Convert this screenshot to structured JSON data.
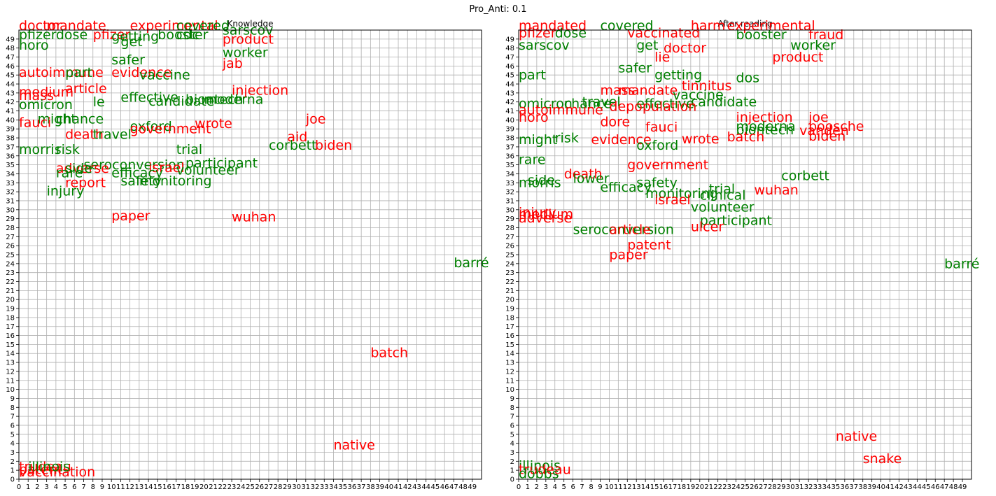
{
  "figure": {
    "suptitle": "Pro_Anti: 0.1"
  },
  "colors": {
    "pro": "#008000",
    "anti": "#ff0000",
    "grid": "#b0b0b0",
    "axis": "#000000"
  },
  "chart_data": [
    {
      "type": "scatter",
      "title": "Knowledge",
      "xlim": [
        0,
        50
      ],
      "ylim": [
        0,
        50
      ],
      "grid": true,
      "xticks": [
        "0",
        "1",
        "2",
        "3",
        "4",
        "5",
        "6",
        "7",
        "8",
        "9",
        "10",
        "11",
        "12",
        "13",
        "14",
        "15",
        "16",
        "17",
        "18",
        "19",
        "20",
        "21",
        "22",
        "23",
        "24",
        "25",
        "26",
        "27",
        "28",
        "29",
        "30",
        "31",
        "32",
        "33",
        "34",
        "35",
        "36",
        "37",
        "38",
        "39",
        "40",
        "41",
        "42",
        "43",
        "44",
        "45",
        "46",
        "47",
        "48",
        "49"
      ],
      "yticks": [
        "0",
        "1",
        "2",
        "3",
        "4",
        "5",
        "6",
        "7",
        "8",
        "9",
        "10",
        "11",
        "12",
        "13",
        "14",
        "15",
        "16",
        "17",
        "18",
        "19",
        "20",
        "21",
        "22",
        "23",
        "24",
        "25",
        "26",
        "27",
        "28",
        "29",
        "30",
        "31",
        "32",
        "33",
        "34",
        "35",
        "36",
        "37",
        "38",
        "39",
        "40",
        "41",
        "42",
        "43",
        "44",
        "45",
        "46",
        "47",
        "48",
        "49"
      ],
      "points": [
        {
          "label": "doctor",
          "x": 0,
          "y": 50,
          "group": "anti"
        },
        {
          "label": "mandate",
          "x": 3,
          "y": 50,
          "group": "anti"
        },
        {
          "label": "experimental",
          "x": 12,
          "y": 50,
          "group": "anti"
        },
        {
          "label": "covered",
          "x": 17,
          "y": 50,
          "group": "pro"
        },
        {
          "label": "sarscov",
          "x": 22,
          "y": 49.5,
          "group": "pro"
        },
        {
          "label": "pfizer",
          "x": 0,
          "y": 49,
          "group": "pro"
        },
        {
          "label": "dose",
          "x": 4,
          "y": 49,
          "group": "pro"
        },
        {
          "label": "pfizer",
          "x": 8,
          "y": 49,
          "group": "anti"
        },
        {
          "label": "getting",
          "x": 10,
          "y": 48.8,
          "group": "pro"
        },
        {
          "label": "booster",
          "x": 15,
          "y": 49,
          "group": "pro"
        },
        {
          "label": "cdc",
          "x": 17,
          "y": 49,
          "group": "pro"
        },
        {
          "label": "product",
          "x": 22,
          "y": 48.5,
          "group": "anti"
        },
        {
          "label": "get",
          "x": 11,
          "y": 48.2,
          "group": "pro"
        },
        {
          "label": "horo",
          "x": 0,
          "y": 47.8,
          "group": "pro"
        },
        {
          "label": "worker",
          "x": 22,
          "y": 47,
          "group": "pro"
        },
        {
          "label": "safer",
          "x": 10,
          "y": 46.2,
          "group": "pro"
        },
        {
          "label": "jab",
          "x": 22,
          "y": 45.8,
          "group": "anti"
        },
        {
          "label": "autoimmune",
          "x": 0,
          "y": 44.8,
          "group": "anti"
        },
        {
          "label": "part",
          "x": 5,
          "y": 44.8,
          "group": "pro"
        },
        {
          "label": "evidence",
          "x": 10,
          "y": 44.8,
          "group": "anti"
        },
        {
          "label": "vaccine",
          "x": 13,
          "y": 44.5,
          "group": "pro"
        },
        {
          "label": "article",
          "x": 5,
          "y": 43,
          "group": "anti"
        },
        {
          "label": "injection",
          "x": 23,
          "y": 42.8,
          "group": "anti"
        },
        {
          "label": "medium",
          "x": 0,
          "y": 42.6,
          "group": "anti"
        },
        {
          "label": "mass",
          "x": 0,
          "y": 42.2,
          "group": "anti"
        },
        {
          "label": "effective",
          "x": 11,
          "y": 42,
          "group": "pro"
        },
        {
          "label": "le",
          "x": 8,
          "y": 41.5,
          "group": "pro"
        },
        {
          "label": "candidate",
          "x": 14,
          "y": 41.6,
          "group": "pro"
        },
        {
          "label": "biontech",
          "x": 18,
          "y": 41.8,
          "group": "pro"
        },
        {
          "label": "moderna",
          "x": 20,
          "y": 41.8,
          "group": "pro"
        },
        {
          "label": "omicron",
          "x": 0,
          "y": 41.2,
          "group": "pro"
        },
        {
          "label": "might",
          "x": 2,
          "y": 39.6,
          "group": "pro"
        },
        {
          "label": "chance",
          "x": 4,
          "y": 39.6,
          "group": "pro"
        },
        {
          "label": "joe",
          "x": 31,
          "y": 39.6,
          "group": "anti"
        },
        {
          "label": "fauci",
          "x": 0,
          "y": 39.2,
          "group": "anti"
        },
        {
          "label": "wrote",
          "x": 19,
          "y": 39.1,
          "group": "anti"
        },
        {
          "label": "oxford",
          "x": 12,
          "y": 38.8,
          "group": "pro"
        },
        {
          "label": "government",
          "x": 12,
          "y": 38.5,
          "group": "anti"
        },
        {
          "label": "death",
          "x": 5,
          "y": 37.9,
          "group": "anti"
        },
        {
          "label": "travel",
          "x": 8,
          "y": 37.9,
          "group": "pro"
        },
        {
          "label": "aid",
          "x": 29,
          "y": 37.6,
          "group": "anti"
        },
        {
          "label": "corbett",
          "x": 27,
          "y": 36.7,
          "group": "pro"
        },
        {
          "label": "biden",
          "x": 32,
          "y": 36.7,
          "group": "anti"
        },
        {
          "label": "morris",
          "x": 0,
          "y": 36.2,
          "group": "pro"
        },
        {
          "label": "risk",
          "x": 4,
          "y": 36.2,
          "group": "pro"
        },
        {
          "label": "trial",
          "x": 17,
          "y": 36.2,
          "group": "pro"
        },
        {
          "label": "seroconversion",
          "x": 7,
          "y": 34.5,
          "group": "pro"
        },
        {
          "label": "participant",
          "x": 18,
          "y": 34.7,
          "group": "pro"
        },
        {
          "label": "israel",
          "x": 14,
          "y": 34.2,
          "group": "anti"
        },
        {
          "label": "adverse",
          "x": 4,
          "y": 34.1,
          "group": "anti"
        },
        {
          "label": "side",
          "x": 5,
          "y": 34.1,
          "group": "pro"
        },
        {
          "label": "efficacy",
          "x": 10,
          "y": 33.6,
          "group": "pro"
        },
        {
          "label": "volunteer",
          "x": 17,
          "y": 33.9,
          "group": "pro"
        },
        {
          "label": "rare",
          "x": 4,
          "y": 33.6,
          "group": "pro"
        },
        {
          "label": "safety",
          "x": 11,
          "y": 32.7,
          "group": "pro"
        },
        {
          "label": "monitoring",
          "x": 13,
          "y": 32.7,
          "group": "pro"
        },
        {
          "label": "report",
          "x": 5,
          "y": 32.5,
          "group": "anti"
        },
        {
          "label": "injury",
          "x": 3,
          "y": 31.6,
          "group": "pro"
        },
        {
          "label": "paper",
          "x": 10,
          "y": 28.8,
          "group": "anti"
        },
        {
          "label": "wuhan",
          "x": 23,
          "y": 28.7,
          "group": "anti"
        },
        {
          "label": "barré",
          "x": 47,
          "y": 23.6,
          "group": "pro"
        },
        {
          "label": "batch",
          "x": 38,
          "y": 13.6,
          "group": "anti"
        },
        {
          "label": "native",
          "x": 34,
          "y": 3.3,
          "group": "anti"
        },
        {
          "label": "vaccination",
          "x": 0,
          "y": 0.3,
          "group": "anti"
        },
        {
          "label": "trudeau",
          "x": 0,
          "y": 0.9,
          "group": "anti"
        },
        {
          "label": "patent",
          "x": 0,
          "y": 0.6,
          "group": "anti"
        },
        {
          "label": "illinois",
          "x": 1,
          "y": 0.9,
          "group": "green"
        }
      ]
    },
    {
      "type": "scatter",
      "title": "After reading",
      "xlim": [
        0,
        50
      ],
      "ylim": [
        0,
        50
      ],
      "grid": true,
      "xticks": [
        "0",
        "1",
        "2",
        "3",
        "4",
        "5",
        "6",
        "7",
        "8",
        "9",
        "10",
        "11",
        "12",
        "13",
        "14",
        "15",
        "16",
        "17",
        "18",
        "19",
        "20",
        "21",
        "22",
        "23",
        "24",
        "25",
        "26",
        "27",
        "28",
        "29",
        "30",
        "31",
        "32",
        "33",
        "34",
        "35",
        "36",
        "37",
        "38",
        "39",
        "40",
        "41",
        "42",
        "43",
        "44",
        "45",
        "46",
        "47",
        "48",
        "49"
      ],
      "yticks": [
        "0",
        "1",
        "2",
        "3",
        "4",
        "5",
        "6",
        "7",
        "8",
        "9",
        "10",
        "11",
        "12",
        "13",
        "14",
        "15",
        "16",
        "17",
        "18",
        "19",
        "20",
        "21",
        "22",
        "23",
        "24",
        "25",
        "26",
        "27",
        "28",
        "29",
        "30",
        "31",
        "32",
        "33",
        "34",
        "35",
        "36",
        "37",
        "38",
        "39",
        "40",
        "41",
        "42",
        "43",
        "44",
        "45",
        "46",
        "47",
        "48",
        "49"
      ],
      "points": [
        {
          "label": "mandated",
          "x": 0,
          "y": 50,
          "group": "anti"
        },
        {
          "label": "covered",
          "x": 9,
          "y": 50,
          "group": "pro"
        },
        {
          "label": "harm",
          "x": 19,
          "y": 50,
          "group": "anti"
        },
        {
          "label": "experimental",
          "x": 23,
          "y": 50,
          "group": "anti"
        },
        {
          "label": "pfizer",
          "x": 0,
          "y": 49.2,
          "group": "anti"
        },
        {
          "label": "dose",
          "x": 4,
          "y": 49.2,
          "group": "pro"
        },
        {
          "label": "vaccinated",
          "x": 12,
          "y": 49.2,
          "group": "anti"
        },
        {
          "label": "booster",
          "x": 24,
          "y": 49,
          "group": "pro"
        },
        {
          "label": "fraud",
          "x": 32,
          "y": 49,
          "group": "anti"
        },
        {
          "label": "sarscov",
          "x": 0,
          "y": 47.8,
          "group": "pro"
        },
        {
          "label": "get",
          "x": 13,
          "y": 47.8,
          "group": "pro"
        },
        {
          "label": "doctor",
          "x": 16,
          "y": 47.5,
          "group": "anti"
        },
        {
          "label": "worker",
          "x": 30,
          "y": 47.8,
          "group": "pro"
        },
        {
          "label": "lie",
          "x": 15,
          "y": 46.5,
          "group": "anti"
        },
        {
          "label": "product",
          "x": 28,
          "y": 46.5,
          "group": "anti"
        },
        {
          "label": "safer",
          "x": 11,
          "y": 45.3,
          "group": "pro"
        },
        {
          "label": "part",
          "x": 0,
          "y": 44.5,
          "group": "pro"
        },
        {
          "label": "getting",
          "x": 15,
          "y": 44.5,
          "group": "pro"
        },
        {
          "label": "dos",
          "x": 24,
          "y": 44.2,
          "group": "pro"
        },
        {
          "label": "tinnitus",
          "x": 18,
          "y": 43.3,
          "group": "anti"
        },
        {
          "label": "mass",
          "x": 9,
          "y": 42.8,
          "group": "anti"
        },
        {
          "label": "mandate",
          "x": 11,
          "y": 42.8,
          "group": "anti"
        },
        {
          "label": "vaccine",
          "x": 17,
          "y": 42.3,
          "group": "pro"
        },
        {
          "label": "omicron",
          "x": 0,
          "y": 41.3,
          "group": "pro"
        },
        {
          "label": "chance",
          "x": 5,
          "y": 41.3,
          "group": "pro"
        },
        {
          "label": "travel",
          "x": 7,
          "y": 41.5,
          "group": "pro"
        },
        {
          "label": "effective",
          "x": 13,
          "y": 41.3,
          "group": "pro"
        },
        {
          "label": "candidate",
          "x": 19,
          "y": 41.5,
          "group": "pro"
        },
        {
          "label": "depopulation",
          "x": 10,
          "y": 41,
          "group": "anti"
        },
        {
          "label": "autoimmune",
          "x": 0,
          "y": 40.6,
          "group": "anti"
        },
        {
          "label": "horo",
          "x": 0,
          "y": 39.8,
          "group": "anti"
        },
        {
          "label": "injection",
          "x": 24,
          "y": 39.8,
          "group": "anti"
        },
        {
          "label": "joe",
          "x": 32,
          "y": 39.8,
          "group": "anti"
        },
        {
          "label": "dore",
          "x": 9,
          "y": 39.3,
          "group": "anti"
        },
        {
          "label": "moderna",
          "x": 24,
          "y": 38.8,
          "group": "pro"
        },
        {
          "label": "boosche",
          "x": 32,
          "y": 38.8,
          "group": "anti"
        },
        {
          "label": "fauci",
          "x": 14,
          "y": 38.7,
          "group": "anti"
        },
        {
          "label": "biontech",
          "x": 24,
          "y": 38.4,
          "group": "pro"
        },
        {
          "label": "vanden",
          "x": 31,
          "y": 38.3,
          "group": "anti"
        },
        {
          "label": "biden",
          "x": 32,
          "y": 37.7,
          "group": "anti"
        },
        {
          "label": "batch",
          "x": 23,
          "y": 37.6,
          "group": "anti"
        },
        {
          "label": "might",
          "x": 0,
          "y": 37.3,
          "group": "pro"
        },
        {
          "label": "risk",
          "x": 4,
          "y": 37.5,
          "group": "pro"
        },
        {
          "label": "evidence",
          "x": 8,
          "y": 37.3,
          "group": "anti"
        },
        {
          "label": "wrote",
          "x": 18,
          "y": 37.4,
          "group": "anti"
        },
        {
          "label": "oxford",
          "x": 13,
          "y": 36.7,
          "group": "pro"
        },
        {
          "label": "rare",
          "x": 0,
          "y": 35.1,
          "group": "pro"
        },
        {
          "label": "government",
          "x": 12,
          "y": 34.5,
          "group": "anti"
        },
        {
          "label": "death",
          "x": 5,
          "y": 33.5,
          "group": "anti"
        },
        {
          "label": "corbett",
          "x": 29,
          "y": 33.3,
          "group": "pro"
        },
        {
          "label": "lower",
          "x": 6,
          "y": 33,
          "group": "pro"
        },
        {
          "label": "side",
          "x": 1,
          "y": 32.8,
          "group": "pro"
        },
        {
          "label": "morris",
          "x": 0,
          "y": 32.5,
          "group": "pro"
        },
        {
          "label": "safety",
          "x": 13,
          "y": 32.5,
          "group": "pro"
        },
        {
          "label": "efficacy",
          "x": 9,
          "y": 32,
          "group": "pro"
        },
        {
          "label": "trial",
          "x": 21,
          "y": 31.8,
          "group": "pro"
        },
        {
          "label": "wuhan",
          "x": 26,
          "y": 31.7,
          "group": "anti"
        },
        {
          "label": "monitoring",
          "x": 14,
          "y": 31.3,
          "group": "pro"
        },
        {
          "label": "clinical",
          "x": 20,
          "y": 31.1,
          "group": "pro"
        },
        {
          "label": "israel",
          "x": 15,
          "y": 30.6,
          "group": "anti"
        },
        {
          "label": "volunteer",
          "x": 19,
          "y": 29.8,
          "group": "pro"
        },
        {
          "label": "injury",
          "x": 0,
          "y": 29.2,
          "group": "anti"
        },
        {
          "label": "medium",
          "x": 0,
          "y": 29,
          "group": "anti"
        },
        {
          "label": "adverse",
          "x": 0,
          "y": 28.6,
          "group": "anti"
        },
        {
          "label": "participant",
          "x": 20,
          "y": 28.3,
          "group": "pro"
        },
        {
          "label": "ulcer",
          "x": 19,
          "y": 27.6,
          "group": "anti"
        },
        {
          "label": "seroconversion",
          "x": 6,
          "y": 27.3,
          "group": "pro"
        },
        {
          "label": "article",
          "x": 10,
          "y": 27.3,
          "group": "anti"
        },
        {
          "label": "patent",
          "x": 12,
          "y": 25.6,
          "group": "anti"
        },
        {
          "label": "paper",
          "x": 10,
          "y": 24.5,
          "group": "anti"
        },
        {
          "label": "barré",
          "x": 47,
          "y": 23.5,
          "group": "pro"
        },
        {
          "label": "native",
          "x": 35,
          "y": 4.3,
          "group": "anti"
        },
        {
          "label": "snake",
          "x": 38,
          "y": 1.8,
          "group": "anti"
        },
        {
          "label": "illinois",
          "x": 0,
          "y": 1,
          "group": "pro"
        },
        {
          "label": "trudeau",
          "x": 0,
          "y": 0.6,
          "group": "anti"
        },
        {
          "label": "dobbs",
          "x": 0,
          "y": 0.1,
          "group": "pro"
        }
      ]
    }
  ]
}
